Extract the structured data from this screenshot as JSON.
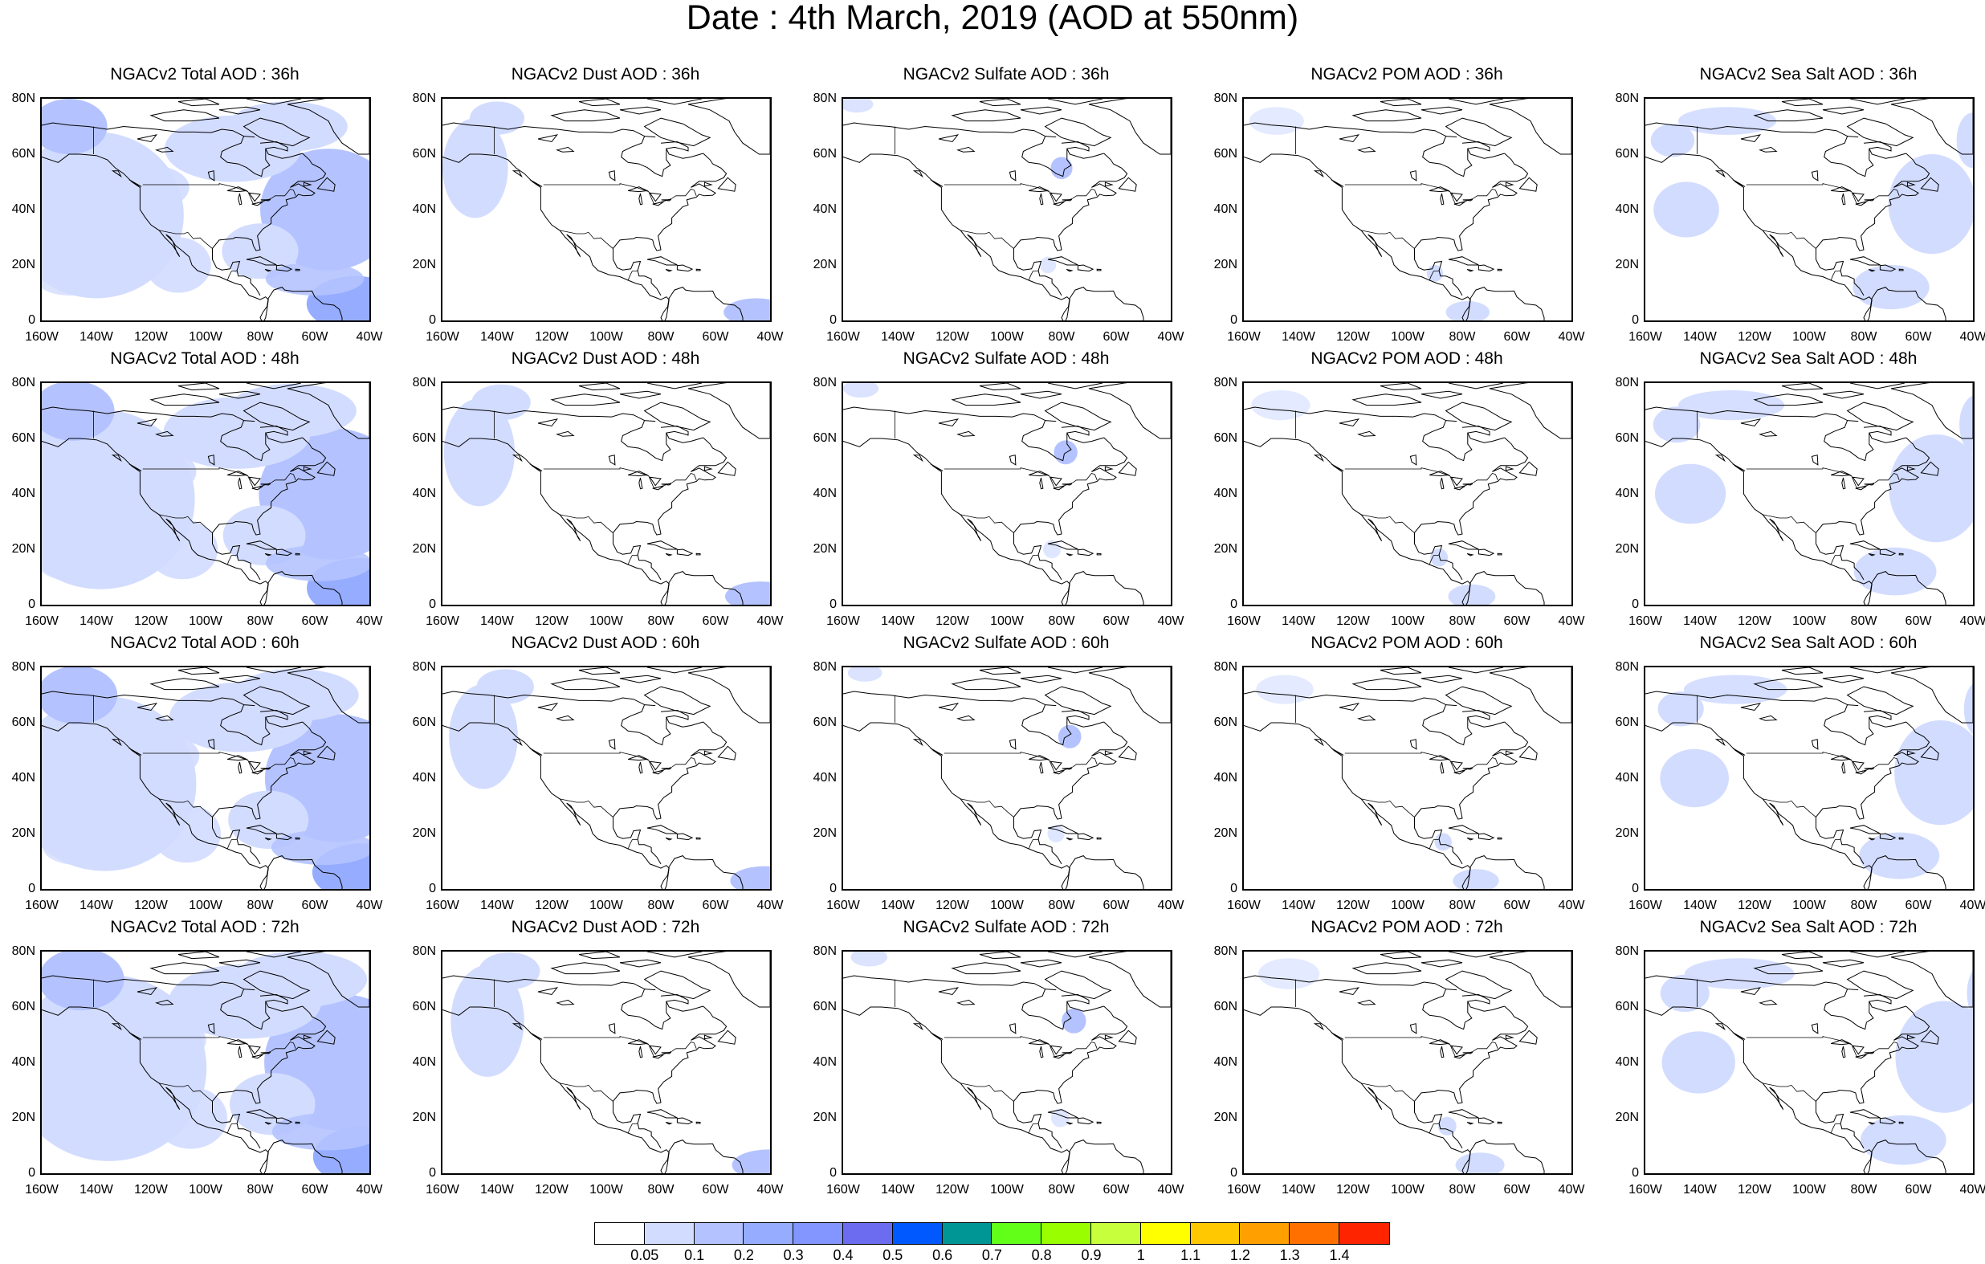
{
  "title": "Date : 4th March, 2019 (AOD at 550nm)",
  "lat_labels": [
    "80N",
    "60N",
    "40N",
    "20N",
    "0"
  ],
  "lon_labels": [
    "160W",
    "140W",
    "120W",
    "100W",
    "80W",
    "60W",
    "40W"
  ],
  "panels": [
    {
      "title": "NGACv2 Total AOD : 36h",
      "species": "total",
      "hour": 36
    },
    {
      "title": "NGACv2 Dust AOD : 36h",
      "species": "dust",
      "hour": 36
    },
    {
      "title": "NGACv2 Sulfate AOD : 36h",
      "species": "sulfate",
      "hour": 36
    },
    {
      "title": "NGACv2 POM AOD : 36h",
      "species": "pom",
      "hour": 36
    },
    {
      "title": "NGACv2 Sea Salt AOD : 36h",
      "species": "seasalt",
      "hour": 36
    },
    {
      "title": "NGACv2 Total AOD : 48h",
      "species": "total",
      "hour": 48
    },
    {
      "title": "NGACv2 Dust AOD : 48h",
      "species": "dust",
      "hour": 48
    },
    {
      "title": "NGACv2 Sulfate AOD : 48h",
      "species": "sulfate",
      "hour": 48
    },
    {
      "title": "NGACv2 POM AOD : 48h",
      "species": "pom",
      "hour": 48
    },
    {
      "title": "NGACv2 Sea Salt AOD : 48h",
      "species": "seasalt",
      "hour": 48
    },
    {
      "title": "NGACv2 Total AOD : 60h",
      "species": "total",
      "hour": 60
    },
    {
      "title": "NGACv2 Dust AOD : 60h",
      "species": "dust",
      "hour": 60
    },
    {
      "title": "NGACv2 Sulfate AOD : 60h",
      "species": "sulfate",
      "hour": 60
    },
    {
      "title": "NGACv2 POM AOD : 60h",
      "species": "pom",
      "hour": 60
    },
    {
      "title": "NGACv2 Sea Salt AOD : 60h",
      "species": "seasalt",
      "hour": 60
    },
    {
      "title": "NGACv2 Total AOD : 72h",
      "species": "total",
      "hour": 72
    },
    {
      "title": "NGACv2 Dust AOD : 72h",
      "species": "dust",
      "hour": 72
    },
    {
      "title": "NGACv2 Sulfate AOD : 72h",
      "species": "sulfate",
      "hour": 72
    },
    {
      "title": "NGACv2 POM AOD : 72h",
      "species": "pom",
      "hour": 72
    },
    {
      "title": "NGACv2 Sea Salt  AOD : 72h",
      "species": "seasalt",
      "hour": 72
    }
  ],
  "colorbar": {
    "colors": [
      "#ffffff",
      "#d2dcff",
      "#b4c3ff",
      "#96acff",
      "#8395ff",
      "#6c6cf0",
      "#0059ff",
      "#009696",
      "#62ff18",
      "#99ff00",
      "#c8ff3c",
      "#ffff00",
      "#ffc800",
      "#ffa000",
      "#ff7000",
      "#ff2400"
    ],
    "labels": [
      "0.05",
      "0.1",
      "0.2",
      "0.3",
      "0.4",
      "0.5",
      "0.6",
      "0.7",
      "0.8",
      "0.9",
      "1",
      "1.1",
      "1.2",
      "1.3",
      "1.4"
    ]
  }
}
